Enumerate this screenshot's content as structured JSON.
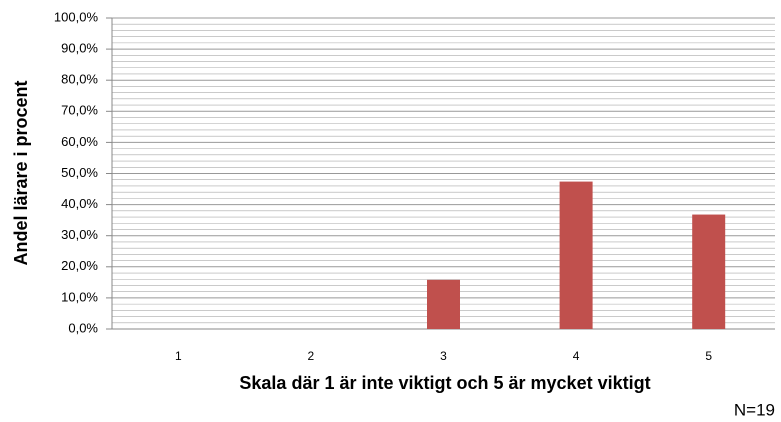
{
  "chart_data": {
    "type": "bar",
    "categories": [
      "1",
      "2",
      "3",
      "4",
      "5"
    ],
    "values": [
      0,
      0,
      15.8,
      47.4,
      36.8
    ],
    "color": "#c0504d",
    "x_label": "Skala där 1 är inte viktigt och 5 är mycket viktigt",
    "y_label": "Andel lärare i procent",
    "annotation": "N=19",
    "ylim": [
      0,
      100
    ],
    "yticks": [
      {
        "value": 0,
        "label": "0,0%"
      },
      {
        "value": 10,
        "label": "10,0%"
      },
      {
        "value": 20,
        "label": "20,0%"
      },
      {
        "value": 30,
        "label": "30,0%"
      },
      {
        "value": 40,
        "label": "40,0%"
      },
      {
        "value": 50,
        "label": "50,0%"
      },
      {
        "value": 60,
        "label": "60,0%"
      },
      {
        "value": 70,
        "label": "70,0%"
      },
      {
        "value": 80,
        "label": "80,0%"
      },
      {
        "value": 90,
        "label": "90,0%"
      },
      {
        "value": 100,
        "label": "100,0%"
      }
    ],
    "grid": true
  }
}
